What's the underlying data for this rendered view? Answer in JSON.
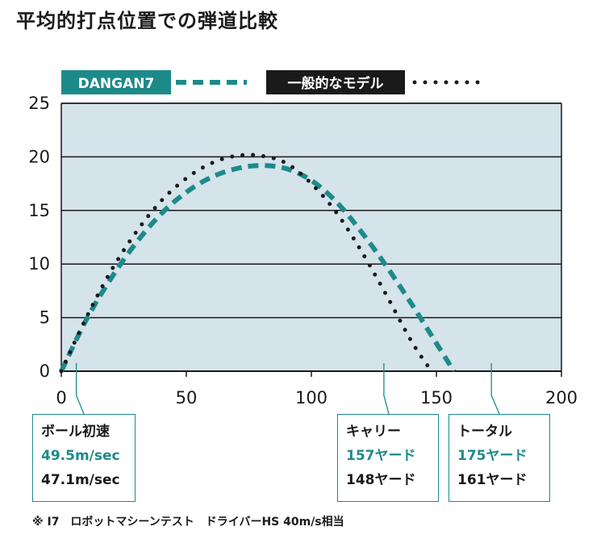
{
  "title": "平均的打点位置での弾道比較",
  "footnote": "※ I7　ロボットマシーンテスト　ドライバーHS 40m/s相当",
  "colors": {
    "teal": "#1d8a8a",
    "dark": "#1a1a1a",
    "plot_bg": "#d5e3ea"
  },
  "chart_data": {
    "type": "line",
    "title": "平均的打点位置での弾道比較",
    "xlabel": "",
    "ylabel": "",
    "xlim": [
      0,
      200
    ],
    "ylim": [
      0,
      25
    ],
    "x_ticks": [
      "0",
      "50",
      "100",
      "150",
      "200"
    ],
    "y_ticks": [
      "0",
      "5",
      "10",
      "15",
      "20",
      "25"
    ],
    "grid": "horizontal",
    "legend": "top-left",
    "series": [
      {
        "name": "DANGAN7",
        "style": "dashed",
        "color": "#1d8a8a",
        "x": [
          0,
          10,
          20,
          30,
          40,
          50,
          60,
          70,
          80,
          90,
          100,
          110,
          120,
          130,
          140,
          150,
          157
        ],
        "y": [
          0,
          4.8,
          8.7,
          12.0,
          14.7,
          16.7,
          18.1,
          18.9,
          19.2,
          18.9,
          17.8,
          15.8,
          13.0,
          9.8,
          6.3,
          2.6,
          0
        ]
      },
      {
        "name": "一般的なモデル",
        "style": "dotted",
        "color": "#1a1a1a",
        "x": [
          0,
          10,
          20,
          30,
          40,
          50,
          60,
          70,
          80,
          90,
          100,
          110,
          120,
          130,
          140,
          148
        ],
        "y": [
          0,
          5.0,
          9.4,
          13.0,
          15.9,
          18.0,
          19.4,
          20.1,
          20.1,
          19.4,
          17.5,
          14.8,
          11.2,
          7.1,
          2.8,
          0
        ]
      }
    ],
    "annotations": [
      {
        "label": "ボール初速",
        "values": [
          "49.5m/sec",
          "47.1m/sec"
        ],
        "x": 6
      },
      {
        "label": "キャリー",
        "values": [
          "157ヤード",
          "148ヤード"
        ],
        "x": 129
      },
      {
        "label": "トータル",
        "values": [
          "175ヤード",
          "161ヤード"
        ],
        "x": 172
      }
    ]
  }
}
